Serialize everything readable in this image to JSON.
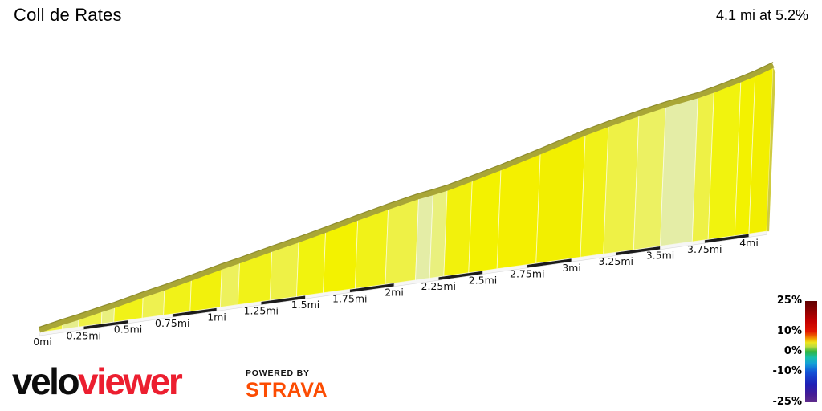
{
  "header": {
    "title": "Coll de Rates",
    "summary": "4.1 mi at 5.2%"
  },
  "chart_data": {
    "type": "area",
    "title": "Coll de Rates",
    "summary": {
      "distance_mi": 4.1,
      "avg_gradient_pct": 5.2
    },
    "x_axis_unit": "mi",
    "total_distance_mi": 4.1,
    "tick_interval_mi": 0.25,
    "x_ticks": [
      "0mi",
      "0.25mi",
      "0.5mi",
      "0.75mi",
      "1mi",
      "1.25mi",
      "1.5mi",
      "1.75mi",
      "2mi",
      "2.25mi",
      "2.5mi",
      "2.75mi",
      "3mi",
      "3.25mi",
      "3.5mi",
      "3.75mi",
      "4mi"
    ],
    "segments": [
      {
        "from_mi": 0.0,
        "to_mi": 0.13,
        "gradient_pct": 4.5,
        "color": "#edf03a"
      },
      {
        "from_mi": 0.13,
        "to_mi": 0.22,
        "gradient_pct": 3.8,
        "color": "#e6ee8c"
      },
      {
        "from_mi": 0.22,
        "to_mi": 0.35,
        "gradient_pct": 4.6,
        "color": "#eef146"
      },
      {
        "from_mi": 0.35,
        "to_mi": 0.42,
        "gradient_pct": 4.0,
        "color": "#e9f07e"
      },
      {
        "from_mi": 0.42,
        "to_mi": 0.58,
        "gradient_pct": 5.0,
        "color": "#f1f218"
      },
      {
        "from_mi": 0.58,
        "to_mi": 0.7,
        "gradient_pct": 4.5,
        "color": "#eef150"
      },
      {
        "from_mi": 0.7,
        "to_mi": 0.85,
        "gradient_pct": 5.0,
        "color": "#f1f218"
      },
      {
        "from_mi": 0.85,
        "to_mi": 1.02,
        "gradient_pct": 5.2,
        "color": "#f2f10c"
      },
      {
        "from_mi": 1.02,
        "to_mi": 1.12,
        "gradient_pct": 4.4,
        "color": "#edf15c"
      },
      {
        "from_mi": 1.12,
        "to_mi": 1.3,
        "gradient_pct": 5.0,
        "color": "#f1f218"
      },
      {
        "from_mi": 1.3,
        "to_mi": 1.45,
        "gradient_pct": 4.6,
        "color": "#eef146"
      },
      {
        "from_mi": 1.45,
        "to_mi": 1.6,
        "gradient_pct": 5.1,
        "color": "#f1f30e"
      },
      {
        "from_mi": 1.6,
        "to_mi": 1.78,
        "gradient_pct": 5.4,
        "color": "#f3f200"
      },
      {
        "from_mi": 1.78,
        "to_mi": 1.95,
        "gradient_pct": 5.0,
        "color": "#f1f218"
      },
      {
        "from_mi": 1.95,
        "to_mi": 2.12,
        "gradient_pct": 4.5,
        "color": "#eef146"
      },
      {
        "from_mi": 2.12,
        "to_mi": 2.2,
        "gradient_pct": 3.2,
        "color": "#e4eda6"
      },
      {
        "from_mi": 2.2,
        "to_mi": 2.28,
        "gradient_pct": 3.9,
        "color": "#e9f07e"
      },
      {
        "from_mi": 2.28,
        "to_mi": 2.42,
        "gradient_pct": 5.3,
        "color": "#f2f10c"
      },
      {
        "from_mi": 2.42,
        "to_mi": 2.58,
        "gradient_pct": 5.6,
        "color": "#f3f200"
      },
      {
        "from_mi": 2.58,
        "to_mi": 2.8,
        "gradient_pct": 6.0,
        "color": "#f4f000"
      },
      {
        "from_mi": 2.8,
        "to_mi": 3.05,
        "gradient_pct": 6.3,
        "color": "#f2ef00"
      },
      {
        "from_mi": 3.05,
        "to_mi": 3.18,
        "gradient_pct": 5.2,
        "color": "#f1f218"
      },
      {
        "from_mi": 3.18,
        "to_mi": 3.35,
        "gradient_pct": 4.7,
        "color": "#eef146"
      },
      {
        "from_mi": 3.35,
        "to_mi": 3.5,
        "gradient_pct": 4.3,
        "color": "#ecf162"
      },
      {
        "from_mi": 3.5,
        "to_mi": 3.68,
        "gradient_pct": 3.3,
        "color": "#e4eda6"
      },
      {
        "from_mi": 3.68,
        "to_mi": 3.77,
        "gradient_pct": 4.8,
        "color": "#eef146"
      },
      {
        "from_mi": 3.77,
        "to_mi": 3.92,
        "gradient_pct": 5.5,
        "color": "#f1f30e"
      },
      {
        "from_mi": 3.92,
        "to_mi": 4.0,
        "gradient_pct": 6.0,
        "color": "#f3f200"
      },
      {
        "from_mi": 4.0,
        "to_mi": 4.1,
        "gradient_pct": 7.5,
        "color": "#f2ef00"
      }
    ],
    "ruler": {
      "dark": "#1c1c1c",
      "light": "#f6f6f6",
      "pattern": "alternating quarter-mile"
    },
    "legend": {
      "position": "bottom-right",
      "labels": [
        {
          "text": "25%",
          "value": 25
        },
        {
          "text": "10%",
          "value": 10
        },
        {
          "text": "0%",
          "value": 0
        },
        {
          "text": "-10%",
          "value": -10
        },
        {
          "text": "-25%",
          "value": -25
        }
      ],
      "gradient_stops": [
        {
          "pct": 25,
          "color": "#5f0000"
        },
        {
          "pct": 20,
          "color": "#900000"
        },
        {
          "pct": 15,
          "color": "#c40000"
        },
        {
          "pct": 10,
          "color": "#e11600"
        },
        {
          "pct": 7.5,
          "color": "#ef6c00"
        },
        {
          "pct": 6,
          "color": "#f2b000"
        },
        {
          "pct": 4.5,
          "color": "#eee51e"
        },
        {
          "pct": 2.5,
          "color": "#bfdd3c"
        },
        {
          "pct": 0,
          "color": "#2eb440"
        },
        {
          "pct": -3,
          "color": "#17bfae"
        },
        {
          "pct": -6,
          "color": "#149fd8"
        },
        {
          "pct": -10,
          "color": "#1254d8"
        },
        {
          "pct": -16,
          "color": "#1d1fb6"
        },
        {
          "pct": -21,
          "color": "#431b96"
        },
        {
          "pct": -25,
          "color": "#5f2d8c"
        }
      ]
    },
    "style_colors": {
      "top_band": "#a9a636",
      "top_band_edge": "#8f8d2e",
      "segment_border": "rgba(255,255,250,0.65)",
      "right_cap": "#cfcb40",
      "tick_label": "#111111"
    }
  },
  "footer": {
    "brand_black": "velo",
    "brand_red": "viewer",
    "powered_by": "POWERED BY",
    "strava": "STRAVA"
  }
}
